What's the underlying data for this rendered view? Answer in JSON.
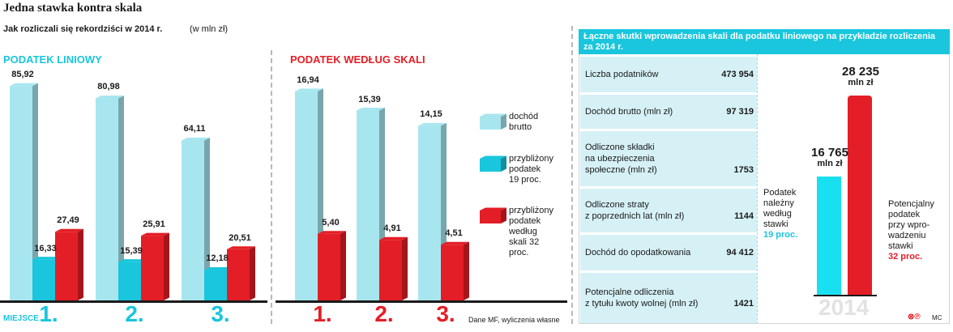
{
  "header": {
    "title": "Jedna stawka kontra skala",
    "subtitle": "Jak rozliczali się rekordziści w 2014 r.",
    "unit": "(w mln zł)"
  },
  "colors": {
    "cyan": "#19c6dd",
    "light_cyan": "#a8e6ef",
    "red": "#e41e26"
  },
  "chart_data": [
    {
      "type": "bar",
      "title": "PODATEK LINIOWY",
      "categories": [
        "1.",
        "2.",
        "3."
      ],
      "category_axis_label": "MIEJSCE",
      "series": [
        {
          "name": "dochód brutto",
          "values": [
            85.92,
            80.98,
            64.11
          ]
        },
        {
          "name": "przybliżony podatek 19 proc.",
          "values": [
            16.33,
            15.39,
            12.18
          ]
        },
        {
          "name": "przybliżony podatek według skali 32 proc.",
          "values": [
            27.49,
            25.91,
            20.51
          ]
        }
      ],
      "value_labels": [
        [
          "85,92",
          "80,98",
          "64,11"
        ],
        [
          "16,33",
          "15,39",
          "12,18"
        ],
        [
          "27,49",
          "25,91",
          "20,51"
        ]
      ],
      "ylim": [
        0,
        90
      ]
    },
    {
      "type": "bar",
      "title": "PODATEK WEDŁUG SKALI",
      "categories": [
        "1.",
        "2.",
        "3."
      ],
      "series": [
        {
          "name": "dochód brutto",
          "values": [
            16.94,
            15.39,
            14.15
          ]
        },
        {
          "name": "przybliżony podatek według skali 32 proc.",
          "values": [
            5.4,
            4.91,
            4.51
          ]
        }
      ],
      "value_labels": [
        [
          "16,94",
          "15,39",
          "14,15"
        ],
        [
          "5,40",
          "4,91",
          "4,51"
        ]
      ],
      "ylim": [
        0,
        18
      ]
    },
    {
      "type": "bar",
      "categories": [
        "Podatek należny według stawki 19 proc.",
        "Potencjalny podatek przy wprowadzeniu stawki 32 proc."
      ],
      "values": [
        16765,
        28235
      ],
      "value_labels": [
        "16 765",
        "28 235"
      ],
      "unit_label": "mln zł",
      "xlabel": "2014",
      "ylim": [
        0,
        30000
      ]
    }
  ],
  "legend": [
    {
      "label_lines": [
        "dochód",
        "brutto"
      ],
      "color": "#a8e6ef"
    },
    {
      "label_lines": [
        "przybliżony",
        "podatek",
        "19 proc."
      ],
      "color": "#19c6dd"
    },
    {
      "label_lines": [
        "przybliżony",
        "podatek",
        "według",
        "skali 32 proc."
      ],
      "color": "#e41e26"
    }
  ],
  "source": "Dane MF, wyliczenia własne",
  "panel": {
    "header": "Łączne skutki wprowadzenia skali dla podatku liniowego na przykładzie rozliczenia za 2014 r.",
    "rows": [
      {
        "label_lines": [
          "Liczba podatników"
        ],
        "value": "473 954"
      },
      {
        "label_lines": [
          "Dochód brutto (mln zł)"
        ],
        "value": "97 319"
      },
      {
        "label_lines": [
          "Odliczone składki",
          "na ubezpieczenia",
          "społeczne (mln zł)"
        ],
        "value": "1753"
      },
      {
        "label_lines": [
          "Odliczone straty",
          "z poprzednich lat (mln zł)"
        ],
        "value": "1144"
      },
      {
        "label_lines": [
          "Dochód do opodatkowania"
        ],
        "value": "94 412"
      },
      {
        "label_lines": [
          "Potencjalne odliczenia",
          "z tytułu kwoty wolnej (mln zł)"
        ],
        "value": "1421"
      }
    ],
    "left_note_lines": [
      "Podatek",
      "należny",
      "według",
      "stawki"
    ],
    "left_note_accent": "19 proc.",
    "right_note_lines": [
      "Potencjalny",
      "podatek",
      "przy wpro-",
      "wadzeniu",
      "stawki"
    ],
    "right_note_accent": "32 proc."
  },
  "credit": "MC",
  "logo_text": "⊗℗"
}
